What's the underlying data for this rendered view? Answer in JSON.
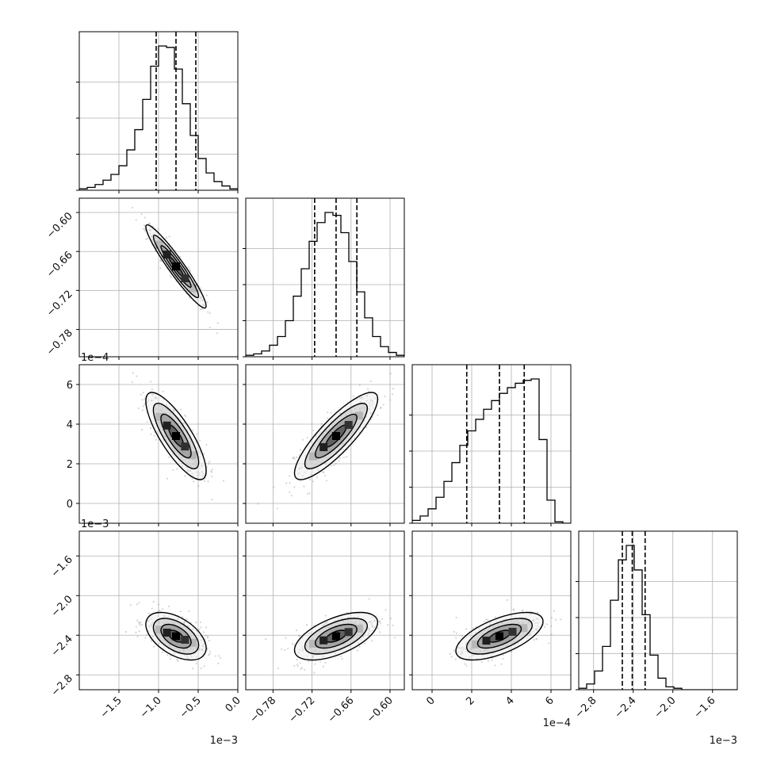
{
  "chart_data": {
    "type": "corner",
    "parameters": [
      {
        "range": [
          -2.0,
          0.0
        ],
        "ticks": [
          -1.5,
          -1.0,
          -0.5,
          0.0
        ],
        "tick_labels": [
          "−1.5",
          "−1.0",
          "−0.5",
          "0.0"
        ],
        "offset_label": "1e−3",
        "hist_edges": [
          -2.0,
          0.0
        ],
        "hist_values": [
          0.01,
          0.02,
          0.04,
          0.07,
          0.11,
          0.17,
          0.28,
          0.42,
          0.63,
          0.86,
          1.0,
          0.99,
          0.84,
          0.6,
          0.38,
          0.22,
          0.12,
          0.06,
          0.03,
          0.01
        ],
        "quantiles": [
          -1.03,
          -0.78,
          -0.53
        ],
        "mean": -0.78
      },
      {
        "range": [
          -0.822,
          -0.578
        ],
        "ticks": [
          -0.78,
          -0.72,
          -0.66,
          -0.6
        ],
        "tick_labels": [
          "−0.78",
          "−0.72",
          "−0.66",
          "−0.60"
        ],
        "offset_label": "",
        "hist_edges": [
          -0.822,
          -0.578
        ],
        "hist_values": [
          0.01,
          0.02,
          0.04,
          0.08,
          0.14,
          0.25,
          0.42,
          0.61,
          0.8,
          0.93,
          1.0,
          0.98,
          0.86,
          0.66,
          0.45,
          0.27,
          0.14,
          0.07,
          0.03,
          0.01
        ],
        "quantiles": [
          -0.716,
          -0.683,
          -0.651
        ],
        "mean": -0.683
      },
      {
        "range": [
          -0.0001,
          0.0007
        ],
        "ticks": [
          0.0,
          0.0002,
          0.0004,
          0.0006
        ],
        "tick_labels": [
          "0",
          "2",
          "4",
          "6"
        ],
        "offset_label": "1e−4",
        "hist_edges": [
          -0.0001,
          0.0007
        ],
        "hist_values": [
          0.02,
          0.05,
          0.1,
          0.18,
          0.29,
          0.42,
          0.54,
          0.64,
          0.72,
          0.79,
          0.85,
          0.9,
          0.94,
          0.97,
          0.99,
          1.0,
          0.58,
          0.16,
          0.01,
          0
        ],
        "quantiles": [
          0.000175,
          0.00034,
          0.000465
        ],
        "mean": 0.00034
      },
      {
        "range": [
          -0.00295,
          -0.00135
        ],
        "ticks": [
          -0.0028,
          -0.0024,
          -0.002,
          -0.0016
        ],
        "tick_labels": [
          "−2.8",
          "−2.4",
          "−2.0",
          "−1.6"
        ],
        "offset_label": "1e−3",
        "hist_edges": [
          -0.00295,
          -0.00135
        ],
        "hist_values": [
          0.01,
          0.04,
          0.13,
          0.3,
          0.62,
          0.9,
          1.0,
          0.83,
          0.52,
          0.24,
          0.08,
          0.02,
          0.01,
          0,
          0,
          0,
          0,
          0,
          0,
          0
        ],
        "quantiles": [
          -0.00251,
          -0.00241,
          -0.00228
        ],
        "mean": -0.00241
      }
    ],
    "pairs": [
      {
        "i": 1,
        "j": 0,
        "rho": -0.95,
        "mean": [
          -0.78,
          -0.683
        ],
        "sd": [
          0.19,
          0.032
        ]
      },
      {
        "i": 2,
        "j": 0,
        "rho": -0.8,
        "mean": [
          -0.78,
          0.00034
        ],
        "sd": [
          0.19,
          0.00011
        ]
      },
      {
        "i": 2,
        "j": 1,
        "rho": 0.85,
        "mean": [
          -0.683,
          0.00034
        ],
        "sd": [
          0.032,
          0.00011
        ]
      },
      {
        "i": 3,
        "j": 0,
        "rho": -0.5,
        "mean": [
          -0.78,
          -0.00241
        ],
        "sd": [
          0.19,
          0.00012
        ]
      },
      {
        "i": 3,
        "j": 1,
        "rho": 0.58,
        "mean": [
          -0.683,
          -0.00241
        ],
        "sd": [
          0.032,
          0.00012
        ]
      },
      {
        "i": 3,
        "j": 2,
        "rho": 0.62,
        "mean": [
          0.00034,
          -0.00241
        ],
        "sd": [
          0.00011,
          0.00012
        ]
      }
    ],
    "grid": true,
    "colors": {
      "samples": "#888888",
      "contour": "#000000",
      "hist": "#000000",
      "grid": "#b0b0b0"
    }
  }
}
